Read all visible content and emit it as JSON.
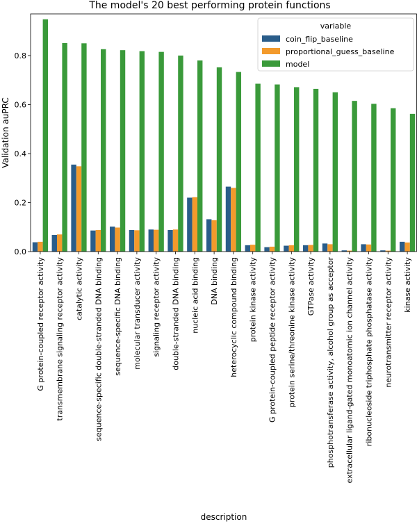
{
  "chart_data": {
    "type": "bar",
    "title": "The model's 20 best performing protein functions",
    "xlabel": "description",
    "ylabel": "Validation auPRC",
    "ylim": [
      0,
      0.97
    ],
    "yticks": [
      0.0,
      0.2,
      0.4,
      0.6,
      0.8
    ],
    "grid": false,
    "legend": {
      "title": "variable",
      "placement": "top-right"
    },
    "categories": [
      "G protein-coupled receptor activity",
      "transmembrane signaling receptor activity",
      "catalytic activity",
      "sequence-specific double-stranded DNA binding",
      "sequence-specific DNA binding",
      "molecular transducer activity",
      "signaling receptor activity",
      "double-stranded DNA binding",
      "nucleic acid binding",
      "DNA binding",
      "heterocyclic compound binding",
      "protein kinase activity",
      "G protein-coupled peptide receptor activity",
      "protein serine/threonine kinase activity",
      "GTPase activity",
      "phosphotransferase activity, alcohol group as acceptor",
      "extracellular ligand-gated monoatomic ion channel activity",
      "ribonucleoside triphosphate phosphatase activity",
      "neurotransmitter receptor activity",
      "kinase activity"
    ],
    "series": [
      {
        "name": "coin_flip_baseline",
        "color": "#2a5d8a",
        "values": [
          0.038,
          0.068,
          0.355,
          0.086,
          0.102,
          0.088,
          0.09,
          0.088,
          0.22,
          0.132,
          0.265,
          0.026,
          0.018,
          0.024,
          0.026,
          0.033,
          0.005,
          0.03,
          0.005,
          0.04
        ]
      },
      {
        "name": "proportional_guess_baseline",
        "color": "#f39a2c",
        "values": [
          0.04,
          0.07,
          0.348,
          0.088,
          0.098,
          0.087,
          0.089,
          0.09,
          0.222,
          0.128,
          0.26,
          0.028,
          0.02,
          0.026,
          0.027,
          0.03,
          0.004,
          0.029,
          0.004,
          0.037
        ]
      },
      {
        "name": "model",
        "color": "#3a9a3a",
        "values": [
          0.948,
          0.851,
          0.85,
          0.826,
          0.822,
          0.818,
          0.815,
          0.8,
          0.78,
          0.752,
          0.733,
          0.685,
          0.682,
          0.671,
          0.664,
          0.65,
          0.615,
          0.603,
          0.585,
          0.562
        ]
      }
    ]
  }
}
